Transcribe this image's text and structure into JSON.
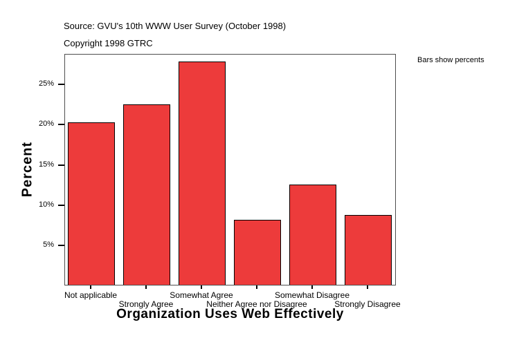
{
  "header": {
    "source": "Source: GVU's 10th WWW User Survey (October 1998)",
    "copyright": "Copyright 1998 GTRC"
  },
  "annotations": {
    "note": "Bars show percents"
  },
  "colors": {
    "bar_fill": "#ED3B3B",
    "bar_border": "#000000",
    "axis_border": "#4d4d4d",
    "tick": "#000000",
    "text": "#000000",
    "background": "#ffffff"
  },
  "chart_data": {
    "type": "bar",
    "title": "",
    "xlabel": "Organization Uses Web Effectively",
    "ylabel": "Percent",
    "categories": [
      "Not applicable",
      "Strongly Agree",
      "Somewhat Agree",
      "Neither Agree nor Disagree",
      "Somewhat Disagree",
      "Strongly Disagree"
    ],
    "values": [
      20.2,
      22.4,
      27.8,
      8.1,
      12.5,
      8.7
    ],
    "unit": "percent",
    "ytick_labels": [
      "5%",
      "10%",
      "15%",
      "20%",
      "25%"
    ],
    "ytick_values": [
      5,
      10,
      15,
      20,
      25
    ],
    "ylim": [
      0,
      28.8
    ],
    "grid": false,
    "legend": "none"
  }
}
